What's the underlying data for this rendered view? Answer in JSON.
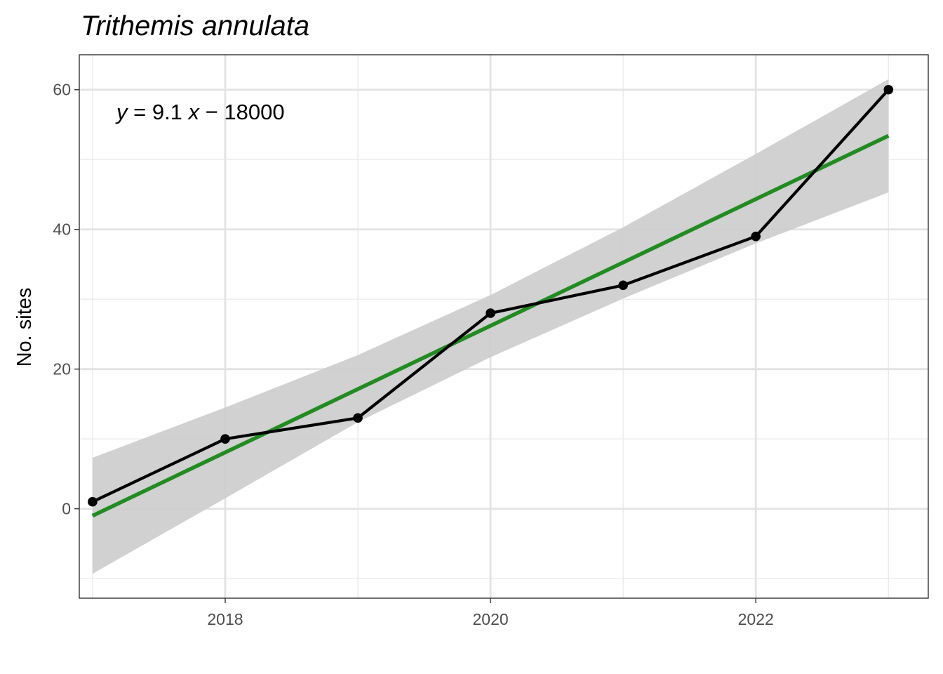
{
  "chart_data": {
    "type": "line",
    "title": "Trithemis annulata",
    "xlabel": "",
    "ylabel": "No. sites",
    "annotation": {
      "var_y": "y",
      "eq_mid": " = 9.1 ",
      "var_x": "x",
      "eq_end": " − 18000"
    },
    "x": [
      2017,
      2018,
      2019,
      2020,
      2021,
      2022,
      2023
    ],
    "series": [
      {
        "values": [
          1,
          10,
          13,
          28,
          32,
          39,
          60
        ],
        "color": "#000000"
      }
    ],
    "trend": {
      "x_start": 2017,
      "y_start": -1,
      "x_end": 2023,
      "y_end": 53.4,
      "color": "#228B22"
    },
    "confidence_band": {
      "x": [
        2017,
        2018,
        2019,
        2020,
        2021,
        2022,
        2023
      ],
      "upper": [
        7.3,
        14.5,
        22.0,
        30.6,
        40.3,
        50.8,
        61.5
      ],
      "lower": [
        -9.3,
        1.5,
        12.4,
        21.7,
        30.1,
        38.0,
        45.3
      ],
      "color": "#cccccc"
    },
    "xlim": [
      2016.9,
      2023.3
    ],
    "ylim": [
      -12.8,
      65
    ],
    "x_ticks": [
      2018,
      2020,
      2022
    ],
    "x_tick_labels": [
      "2018",
      "2020",
      "2022"
    ],
    "y_ticks": [
      0,
      20,
      40,
      60
    ],
    "y_tick_labels": [
      "0",
      "20",
      "40",
      "60"
    ],
    "x_minor_ticks": [
      2017,
      2019,
      2021,
      2023
    ],
    "y_minor_ticks": [
      -10,
      10,
      30,
      50
    ],
    "grid": true,
    "legend": "none"
  }
}
